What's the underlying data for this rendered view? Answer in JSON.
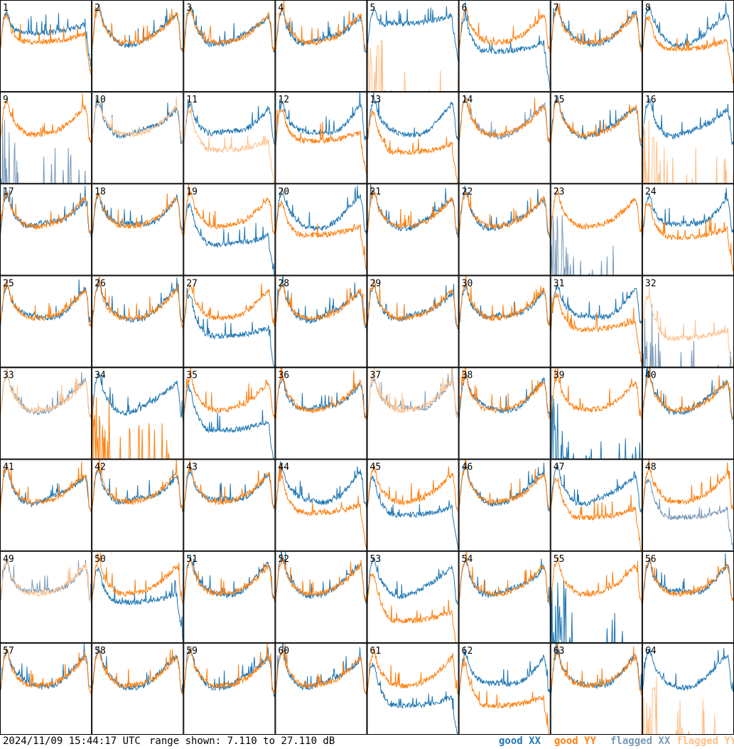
{
  "footer": {
    "timestamp": "2024/11/09 15:44:17 UTC",
    "range": "range shown: 7.110 to 27.110 dB"
  },
  "legend": {
    "good_xx": "good XX",
    "good_yy": "good YY",
    "flagged_xx": "flagged XX",
    "flagged_yy": "flagged YY"
  },
  "colors": {
    "good_xx": "#1f77b4",
    "good_yy": "#ff7f0e",
    "flagged_xx": "#7a9ab8",
    "flagged_yy": "#ffc08a",
    "frame": "#000000"
  },
  "chart_data": {
    "type": "line",
    "layout": "small-multiples 8x8",
    "y_unit": "dB",
    "ylim": [
      7.11,
      27.11
    ],
    "panel_labels": [
      "1",
      "2",
      "3",
      "4",
      "5",
      "6",
      "7",
      "8",
      "9",
      "10",
      "11",
      "12",
      "13",
      "14",
      "15",
      "16",
      "17",
      "18",
      "19",
      "20",
      "21",
      "22",
      "23",
      "24",
      "25",
      "26",
      "27",
      "28",
      "29",
      "30",
      "31",
      "32",
      "33",
      "34",
      "35",
      "36",
      "37",
      "38",
      "39",
      "40",
      "41",
      "42",
      "43",
      "44",
      "45",
      "46",
      "47",
      "48",
      "49",
      "50",
      "51",
      "52",
      "53",
      "54",
      "55",
      "56",
      "57",
      "58",
      "59",
      "60",
      "61",
      "62",
      "63",
      "64"
    ],
    "profile_x": [
      0.0,
      0.04,
      0.08,
      0.12,
      0.16,
      0.2,
      0.25,
      0.3,
      0.35,
      0.4,
      0.45,
      0.5,
      0.55,
      0.6,
      0.65,
      0.7,
      0.75,
      0.8,
      0.85,
      0.9,
      0.93,
      0.95,
      0.97,
      1.0
    ],
    "profile_y": [
      15.5,
      23.5,
      25.5,
      22.0,
      20.5,
      19.5,
      18.5,
      18.0,
      17.8,
      17.8,
      17.9,
      18.0,
      18.2,
      18.6,
      19.0,
      19.6,
      20.4,
      21.3,
      22.3,
      23.4,
      24.0,
      22.0,
      17.0,
      16.0
    ],
    "panels": [
      {
        "label": "1",
        "xx": "good",
        "yy": "good",
        "xx_level": 20.0,
        "yy_level": 18.0,
        "drop_start": 0.9
      },
      {
        "label": "2",
        "xx": "good",
        "yy": "good"
      },
      {
        "label": "3",
        "xx": "good",
        "yy": "good"
      },
      {
        "label": "4",
        "xx": "good",
        "yy": "good"
      },
      {
        "label": "5",
        "xx": "good",
        "yy": "flagged",
        "xx_level": 22.0,
        "yy_level": 7.11,
        "yy_spike": 0.12
      },
      {
        "label": "6",
        "xx": "good",
        "yy": "good",
        "xx_level": 16.0
      },
      {
        "label": "7",
        "xx": "good",
        "yy": "good"
      },
      {
        "label": "8",
        "xx": "good",
        "yy": "good",
        "yy_level": 16.5
      },
      {
        "label": "9",
        "xx": "flagged",
        "yy": "good",
        "xx_level": 7.11
      },
      {
        "label": "10",
        "xx": "good",
        "yy": "flagged"
      },
      {
        "label": "11",
        "xx": "good",
        "yy": "flagged",
        "yy_level": 14.5
      },
      {
        "label": "12",
        "xx": "good",
        "yy": "good",
        "yy_level": 16.5
      },
      {
        "label": "13",
        "xx": "good",
        "yy": "good",
        "yy_level": 14.0
      },
      {
        "label": "14",
        "xx": "flagged",
        "yy": "good"
      },
      {
        "label": "15",
        "xx": "good",
        "yy": "good"
      },
      {
        "label": "16",
        "xx": "good",
        "yy": "flagged",
        "yy_level": 7.11,
        "yy_spike": 0.12
      },
      {
        "label": "17",
        "xx": "good",
        "yy": "good"
      },
      {
        "label": "18",
        "xx": "good",
        "yy": "good"
      },
      {
        "label": "19",
        "xx": "good",
        "yy": "good",
        "xx_level": 14.0
      },
      {
        "label": "20",
        "xx": "good",
        "yy": "good",
        "yy_level": 16.0
      },
      {
        "label": "21",
        "xx": "good",
        "yy": "good"
      },
      {
        "label": "22",
        "xx": "good",
        "yy": "good"
      },
      {
        "label": "23",
        "xx": "flagged",
        "yy": "good",
        "xx_level": 7.11
      },
      {
        "label": "24",
        "xx": "good",
        "yy": "good",
        "yy_level": 15.5
      },
      {
        "label": "25",
        "xx": "good",
        "yy": "good"
      },
      {
        "label": "26",
        "xx": "good",
        "yy": "good"
      },
      {
        "label": "27",
        "xx": "good",
        "yy": "good",
        "xx_level": 14.0
      },
      {
        "label": "28",
        "xx": "good",
        "yy": "good"
      },
      {
        "label": "29",
        "xx": "good",
        "yy": "good"
      },
      {
        "label": "30",
        "xx": "good",
        "yy": "good"
      },
      {
        "label": "31",
        "xx": "good",
        "yy": "good",
        "yy_level": 15.5
      },
      {
        "label": "32",
        "xx": "flagged",
        "yy": "flagged",
        "xx_level": 7.11,
        "yy_level": 13.5
      },
      {
        "label": "33",
        "xx": "flagged",
        "yy": "flagged"
      },
      {
        "label": "34",
        "xx": "good",
        "yy": "good",
        "yy_level": 7.11
      },
      {
        "label": "35",
        "xx": "good",
        "yy": "good",
        "xx_level": 13.5
      },
      {
        "label": "36",
        "xx": "good",
        "yy": "good"
      },
      {
        "label": "37",
        "xx": "flagged",
        "yy": "flagged"
      },
      {
        "label": "38",
        "xx": "good",
        "yy": "good"
      },
      {
        "label": "39",
        "xx": "good",
        "yy": "good",
        "xx_level": 7.11
      },
      {
        "label": "40",
        "xx": "good",
        "yy": "good"
      },
      {
        "label": "41",
        "xx": "good",
        "yy": "good"
      },
      {
        "label": "42",
        "xx": "good",
        "yy": "good"
      },
      {
        "label": "43",
        "xx": "good",
        "yy": "good"
      },
      {
        "label": "44",
        "xx": "good",
        "yy": "good",
        "yy_level": 15.5
      },
      {
        "label": "45",
        "xx": "good",
        "yy": "good",
        "xx_level": 15.0
      },
      {
        "label": "46",
        "xx": "good",
        "yy": "good"
      },
      {
        "label": "47",
        "xx": "good",
        "yy": "good",
        "yy_level": 14.5
      },
      {
        "label": "48",
        "xx": "flagged",
        "yy": "good",
        "xx_level": 14.5
      },
      {
        "label": "49",
        "xx": "flagged",
        "yy": "flagged"
      },
      {
        "label": "50",
        "xx": "good",
        "yy": "good",
        "xx_level": 16.0
      },
      {
        "label": "51",
        "xx": "good",
        "yy": "good"
      },
      {
        "label": "52",
        "xx": "good",
        "yy": "good"
      },
      {
        "label": "53",
        "xx": "good",
        "yy": "good",
        "yy_level": 12.0
      },
      {
        "label": "54",
        "xx": "good",
        "yy": "good"
      },
      {
        "label": "55",
        "xx": "good",
        "yy": "good",
        "xx_level": 7.11
      },
      {
        "label": "56",
        "xx": "good",
        "yy": "good"
      },
      {
        "label": "57",
        "xx": "good",
        "yy": "good"
      },
      {
        "label": "58",
        "xx": "good",
        "yy": "good"
      },
      {
        "label": "59",
        "xx": "good",
        "yy": "good"
      },
      {
        "label": "60",
        "xx": "good",
        "yy": "good"
      },
      {
        "label": "61",
        "xx": "good",
        "yy": "good",
        "xx_level": 13.5
      },
      {
        "label": "62",
        "xx": "good",
        "yy": "good",
        "yy_level": 13.5
      },
      {
        "label": "63",
        "xx": "good",
        "yy": "good"
      },
      {
        "label": "64",
        "xx": "good",
        "yy": "flagged",
        "yy_level": 7.11,
        "yy_spike": 0.12
      }
    ]
  }
}
